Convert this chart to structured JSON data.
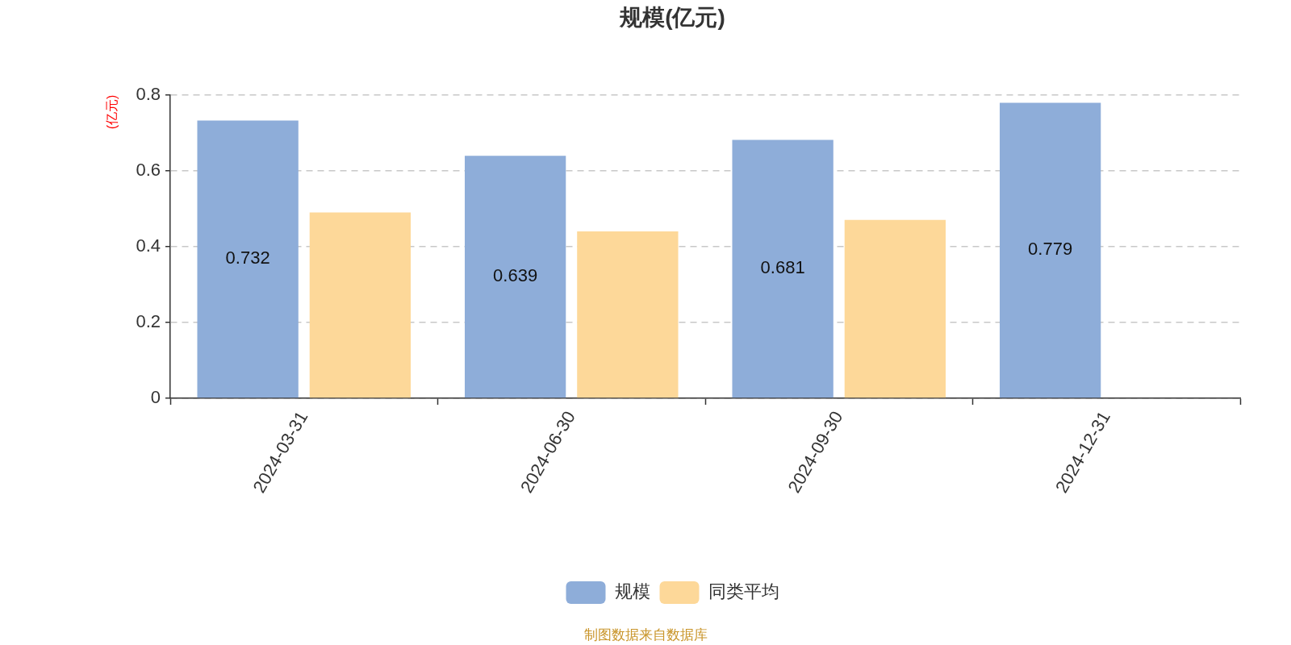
{
  "chart_data": {
    "type": "bar",
    "title": "规模(亿元)",
    "ylabel": "(亿元)",
    "categories": [
      "2024-03-31",
      "2024-06-30",
      "2024-09-30",
      "2024-12-31"
    ],
    "series": [
      {
        "name": "规模",
        "color": "#8eadd9",
        "values": [
          0.732,
          0.639,
          0.681,
          0.779
        ],
        "value_labels": [
          "0.732",
          "0.639",
          "0.681",
          "0.779"
        ]
      },
      {
        "name": "同类平均",
        "color": "#fdd899",
        "values": [
          0.49,
          0.44,
          0.47,
          null
        ]
      }
    ],
    "ylim": [
      0,
      0.8
    ],
    "yticks": [
      0,
      0.2,
      0.4,
      0.6,
      0.8
    ],
    "grid": "y",
    "legend": "bottom",
    "annotations": [
      "制图数据来自数据库"
    ]
  }
}
